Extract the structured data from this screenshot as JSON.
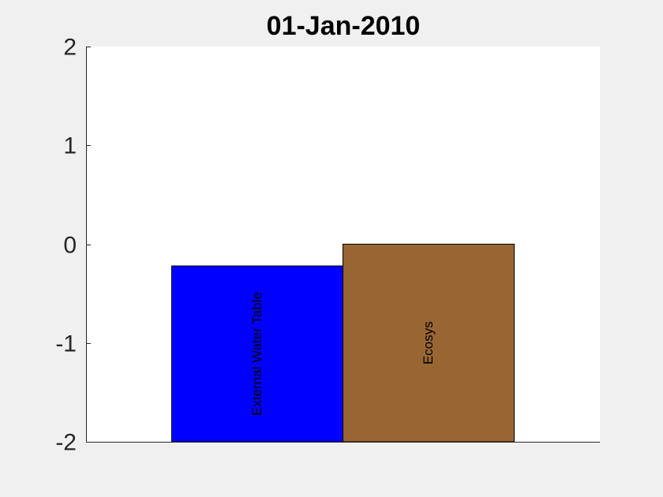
{
  "chart_data": {
    "type": "bar",
    "title": "01-Jan-2010",
    "xlabel": "",
    "ylabel": "",
    "ylim": [
      -2,
      2
    ],
    "yticks": [
      2,
      1,
      0,
      -1,
      -2
    ],
    "grid": false,
    "categories": [
      "External Water Table",
      "Ecosys"
    ],
    "values": [
      -0.22,
      0.0
    ],
    "baseline": -2,
    "colors": [
      "#0000ff",
      "#996633"
    ]
  }
}
